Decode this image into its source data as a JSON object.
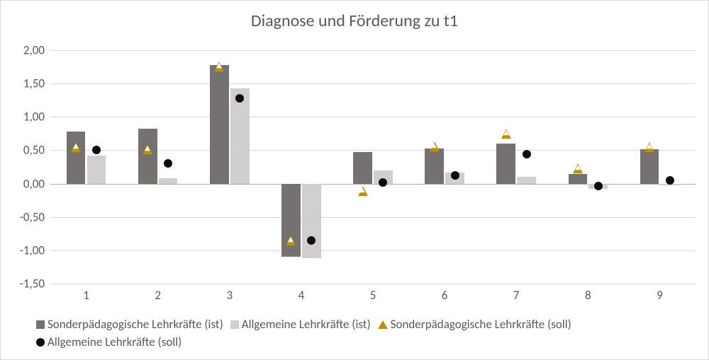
{
  "chart": {
    "type": "bar+scatter",
    "title": "Diagnose und Förderung zu t1",
    "title_fontsize": 24,
    "title_color": "#595959",
    "background_color": "#ffffff",
    "border_color": "#d9d9d9",
    "grid_color": "#d9d9d9",
    "zero_line_color": "#afabab",
    "axis_label_color": "#595959",
    "axis_fontsize": 17,
    "categories": [
      "1",
      "2",
      "3",
      "4",
      "5",
      "6",
      "7",
      "8",
      "9"
    ],
    "ylim": [
      -1.5,
      2.0
    ],
    "ytick_step": 0.5,
    "ytick_labels": [
      "-1,50",
      "-1,00",
      "-0,50",
      "0,00",
      "0,50",
      "1,00",
      "1,50",
      "2,00"
    ],
    "bar_group_width": 0.55,
    "bar_gap_ratio": 0.04,
    "series_bars": [
      {
        "name": "Sonderpädagogische Lehrkräfte (ist)",
        "color": "#767171",
        "values": [
          0.78,
          0.82,
          1.78,
          -1.1,
          0.47,
          0.53,
          0.6,
          0.14,
          0.52
        ]
      },
      {
        "name": "Allgemeine Lehrkräfte (ist)",
        "color": "#d0cece",
        "values": [
          0.42,
          0.08,
          1.43,
          -1.12,
          0.2,
          0.16,
          0.1,
          -0.08,
          -0.03
        ]
      }
    ],
    "series_markers": [
      {
        "name": "Sonderpädagogische Lehrkräfte (soll)",
        "type": "triangle",
        "border_color": "#bf9000",
        "fill_color": "#ffffff",
        "size": 14,
        "values": [
          0.52,
          0.48,
          1.72,
          -0.88,
          -0.14,
          0.53,
          0.72,
          0.2,
          0.52
        ]
      },
      {
        "name": "Allgemeine Lehrkräfte (soll)",
        "type": "circle",
        "color": "#0d0d0d",
        "size": 12,
        "values": [
          0.5,
          0.3,
          1.28,
          -0.85,
          0.02,
          0.12,
          0.44,
          -0.04,
          0.05
        ]
      }
    ],
    "legend": {
      "fontsize": 17,
      "items": [
        {
          "key": "bar0",
          "label": "Sonderpädagogische Lehrkräfte (ist)"
        },
        {
          "key": "bar1",
          "label": "Allgemeine Lehrkräfte (ist)"
        },
        {
          "key": "tri",
          "label": "Sonderpädagogische Lehrkräfte (soll)"
        },
        {
          "key": "dot",
          "label": "Allgemeine Lehrkräfte (soll)"
        }
      ]
    }
  }
}
